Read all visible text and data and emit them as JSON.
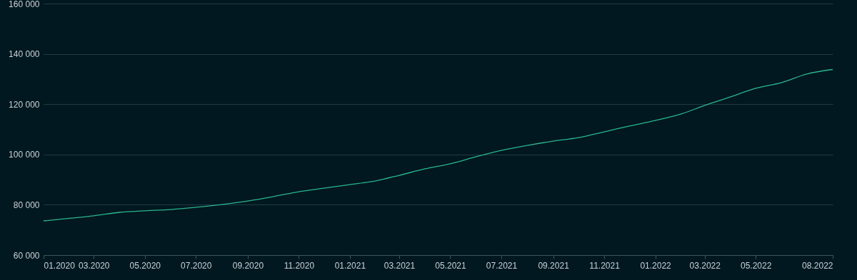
{
  "chart_data": {
    "type": "line",
    "x": [
      "2020-01",
      "2020-02",
      "2020-03",
      "2020-04",
      "2020-05",
      "2020-06",
      "2020-07",
      "2020-08",
      "2020-09",
      "2020-10",
      "2020-11",
      "2020-12",
      "2021-01",
      "2021-02",
      "2021-03",
      "2021-04",
      "2021-05",
      "2021-06",
      "2021-07",
      "2021-08",
      "2021-09",
      "2021-10",
      "2021-11",
      "2021-12",
      "2022-01",
      "2022-02",
      "2022-03",
      "2022-04",
      "2022-05",
      "2022-06",
      "2022-07",
      "2022-08"
    ],
    "series": [
      {
        "color": "#2bb58e",
        "values": [
          73600,
          74600,
          75600,
          77000,
          77600,
          78100,
          79000,
          80100,
          81500,
          83200,
          85200,
          86600,
          88000,
          89500,
          91700,
          94300,
          96300,
          99100,
          101600,
          103600,
          105300,
          106700,
          109000,
          111300,
          113500,
          116100,
          119500,
          122900,
          126300,
          128600,
          132000,
          133800
        ]
      }
    ],
    "xlim": [
      "2020-01",
      "2022-08"
    ],
    "xticks": [
      {
        "value": "2020-01",
        "label": "01.2020"
      },
      {
        "value": "2020-03",
        "label": "03.2020"
      },
      {
        "value": "2020-05",
        "label": "05.2020"
      },
      {
        "value": "2020-07",
        "label": "07.2020"
      },
      {
        "value": "2020-09",
        "label": "09.2020"
      },
      {
        "value": "2020-11",
        "label": "11.2020"
      },
      {
        "value": "2021-01",
        "label": "01.2021"
      },
      {
        "value": "2021-03",
        "label": "03.2021"
      },
      {
        "value": "2021-05",
        "label": "05.2021"
      },
      {
        "value": "2021-07",
        "label": "07.2021"
      },
      {
        "value": "2021-09",
        "label": "09.2021"
      },
      {
        "value": "2021-11",
        "label": "11.2021"
      },
      {
        "value": "2022-01",
        "label": "01.2022"
      },
      {
        "value": "2022-03",
        "label": "03.2022"
      },
      {
        "value": "2022-05",
        "label": "05.2022"
      },
      {
        "value": "2022-08",
        "label": "08.2022"
      }
    ],
    "ylim": [
      60000,
      160000
    ],
    "yticks": [
      {
        "value": 60000,
        "label": "60 000"
      },
      {
        "value": 80000,
        "label": "80 000"
      },
      {
        "value": 100000,
        "label": "100 000"
      },
      {
        "value": 120000,
        "label": "120 000"
      },
      {
        "value": 140000,
        "label": "140 000"
      },
      {
        "value": 160000,
        "label": "160 000"
      }
    ],
    "grid": "y"
  }
}
